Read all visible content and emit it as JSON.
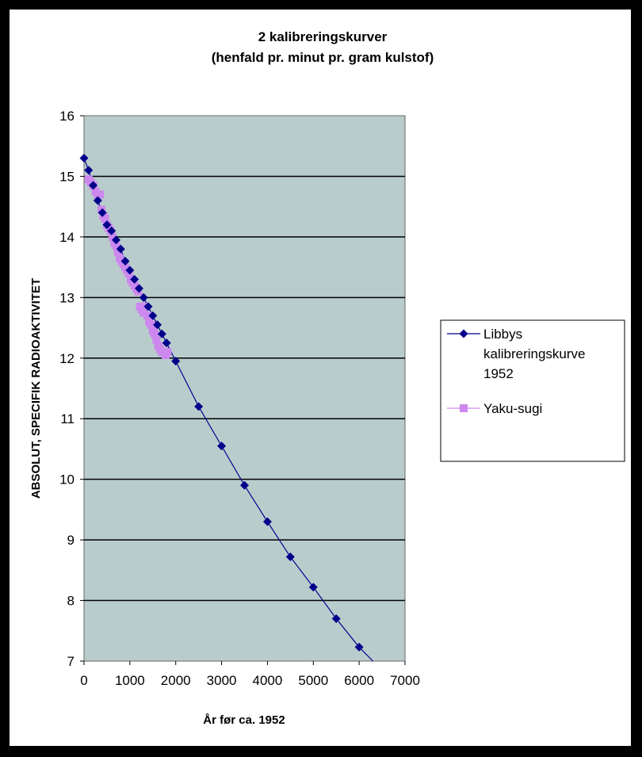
{
  "chart_data": {
    "type": "scatter",
    "title": "2 kalibreringskurver",
    "subtitle": "(henfald pr. minut pr. gram kulstof)",
    "xlabel": "År før ca. 1952",
    "ylabel": "ABSOLUT, SPECIFIK RADIOAKTIVITET",
    "xlim": [
      0,
      7000
    ],
    "ylim": [
      7,
      16
    ],
    "xticks": [
      "0",
      "1000",
      "2000",
      "3000",
      "4000",
      "5000",
      "6000",
      "7000"
    ],
    "yticks": [
      "7",
      "8",
      "9",
      "10",
      "11",
      "12",
      "13",
      "14",
      "15",
      "16"
    ],
    "grid": "horizontal",
    "legend_position": "right",
    "plot_background": "#b9cccc",
    "series": [
      {
        "name": "Libbys kalibreringskurve 1952",
        "legend_lines": [
          "Libbys",
          "kalibreringskurve",
          "1952"
        ],
        "color": "#00008b",
        "marker": "diamond",
        "line": true,
        "x": [
          0,
          100,
          200,
          300,
          400,
          500,
          600,
          700,
          800,
          900,
          1000,
          1100,
          1200,
          1300,
          1400,
          1500,
          1600,
          1700,
          1800,
          2000,
          2500,
          3000,
          3500,
          4000,
          4500,
          5000,
          5500,
          6000
        ],
        "y": [
          15.3,
          15.1,
          14.85,
          14.6,
          14.4,
          14.2,
          14.1,
          13.95,
          13.8,
          13.6,
          13.45,
          13.3,
          13.15,
          13.0,
          12.85,
          12.7,
          12.55,
          12.4,
          12.25,
          11.95,
          11.2,
          10.55,
          9.9,
          9.3,
          8.72,
          8.22,
          7.7,
          7.23
        ],
        "trend_end": [
          6300,
          7.0
        ]
      },
      {
        "name": "Yaku-sugi",
        "legend_lines": [
          "Yaku-sugi"
        ],
        "color": "#cc88ee",
        "marker": "square",
        "line": false,
        "x": [
          100,
          150,
          200,
          250,
          300,
          350,
          380,
          420,
          460,
          500,
          540,
          580,
          620,
          660,
          700,
          740,
          780,
          820,
          860,
          900,
          940,
          980,
          1020,
          1060,
          1100,
          1140,
          1180,
          1220,
          1260,
          1300,
          1340,
          1380,
          1420,
          1460,
          1500,
          1540,
          1580,
          1620,
          1660,
          1700,
          1740,
          1780,
          1820
        ],
        "y": [
          14.95,
          14.9,
          14.85,
          14.75,
          14.7,
          14.7,
          14.45,
          14.35,
          14.3,
          14.2,
          14.15,
          14.1,
          14.0,
          13.9,
          13.85,
          13.75,
          13.65,
          13.6,
          13.55,
          13.5,
          13.45,
          13.4,
          13.3,
          13.25,
          13.2,
          13.15,
          13.1,
          12.85,
          12.8,
          12.75,
          12.85,
          12.7,
          12.6,
          12.55,
          12.45,
          12.4,
          12.3,
          12.2,
          12.15,
          12.1,
          12.1,
          12.05,
          12.1
        ]
      }
    ]
  }
}
